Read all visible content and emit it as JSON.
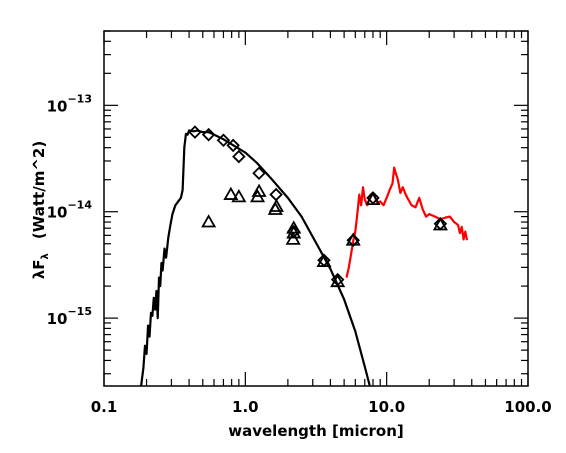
{
  "chart_data": {
    "type": "line",
    "title": "",
    "xscale": "log",
    "yscale": "log",
    "xlim": [
      0.1,
      100.0
    ],
    "ylim": [
      2.3e-16,
      5e-13
    ],
    "xlabel": "wavelength [micron]",
    "ylabel_prefix": "λF",
    "ylabel_subscript": "λ",
    "ylabel_units": "(Watt/m^2)",
    "x_ticks": [
      {
        "value": 0.1,
        "label": "0.1"
      },
      {
        "value": 1.0,
        "label": "1.0"
      },
      {
        "value": 10.0,
        "label": "10.0"
      },
      {
        "value": 100.0,
        "label": "100.0"
      }
    ],
    "y_ticks": [
      {
        "value": 1e-15,
        "base": "10",
        "exp": "−15"
      },
      {
        "value": 1e-14,
        "base": "10",
        "exp": "−14"
      },
      {
        "value": 1e-13,
        "base": "10",
        "exp": "−13"
      }
    ],
    "grid": false,
    "legend": "none",
    "series": [
      {
        "kind": "line",
        "color": "#000000",
        "points": [
          [
            0.183,
            2.3e-16
          ],
          [
            0.19,
            3.4e-16
          ],
          [
            0.195,
            5.5e-16
          ],
          [
            0.2,
            4.6e-16
          ],
          [
            0.205,
            8.5e-16
          ],
          [
            0.21,
            6.7e-16
          ],
          [
            0.215,
            1.12e-15
          ],
          [
            0.22,
            1.05e-15
          ],
          [
            0.225,
            1.55e-15
          ],
          [
            0.23,
            1.2e-15
          ],
          [
            0.235,
            1.8e-15
          ],
          [
            0.24,
            1e-15
          ],
          [
            0.245,
            2.4e-15
          ],
          [
            0.25,
            2e-15
          ],
          [
            0.255,
            3.3e-15
          ],
          [
            0.26,
            2.8e-15
          ],
          [
            0.268,
            4.5e-15
          ],
          [
            0.275,
            3.7e-15
          ],
          [
            0.285,
            5.7e-15
          ],
          [
            0.295,
            7.5e-15
          ],
          [
            0.305,
            9.5e-15
          ],
          [
            0.32,
            1.15e-14
          ],
          [
            0.335,
            1.25e-14
          ],
          [
            0.35,
            1.35e-14
          ],
          [
            0.36,
            1.6e-14
          ],
          [
            0.37,
            4e-14
          ],
          [
            0.38,
            5.4e-14
          ],
          [
            0.39,
            5.3e-14
          ],
          [
            0.4,
            5.8e-14
          ],
          [
            0.43,
            5.7e-14
          ],
          [
            0.46,
            5.8e-14
          ],
          [
            0.5,
            5.6e-14
          ],
          [
            0.55,
            5.6e-14
          ],
          [
            0.6,
            5.3e-14
          ],
          [
            0.7,
            4.8e-14
          ],
          [
            0.8,
            4.3e-14
          ],
          [
            1.0,
            3.6e-14
          ],
          [
            1.2,
            2.9e-14
          ],
          [
            1.5,
            2.1e-14
          ],
          [
            2.0,
            1.35e-14
          ],
          [
            2.5,
            9e-15
          ],
          [
            3.0,
            5.8e-15
          ],
          [
            4.0,
            2.9e-15
          ],
          [
            5.0,
            1.5e-15
          ],
          [
            6.0,
            7.5e-16
          ],
          [
            7.0,
            3.5e-16
          ],
          [
            7.6,
            2.3e-16
          ]
        ]
      },
      {
        "kind": "line",
        "color": "#ff0000",
        "points": [
          [
            5.2,
            2.4e-15
          ],
          [
            5.4,
            3e-15
          ],
          [
            5.6,
            4e-15
          ],
          [
            5.8,
            5.3e-15
          ],
          [
            6.0,
            6.5e-15
          ],
          [
            6.2,
            9.5e-15
          ],
          [
            6.4,
            1.45e-14
          ],
          [
            6.6,
            1.15e-14
          ],
          [
            6.8,
            1.7e-14
          ],
          [
            7.0,
            1.3e-14
          ],
          [
            7.3,
            1.15e-14
          ],
          [
            7.7,
            1.45e-14
          ],
          [
            8.0,
            1.5e-14
          ],
          [
            8.3,
            1.35e-14
          ],
          [
            8.6,
            1.2e-14
          ],
          [
            9.0,
            1.25e-14
          ],
          [
            9.5,
            1.15e-14
          ],
          [
            10.0,
            1.35e-14
          ],
          [
            10.5,
            1.6e-14
          ],
          [
            11.0,
            1.85e-14
          ],
          [
            11.3,
            2.6e-14
          ],
          [
            11.6,
            2.3e-14
          ],
          [
            12.0,
            2e-14
          ],
          [
            12.5,
            1.5e-14
          ],
          [
            13.0,
            1.7e-14
          ],
          [
            13.5,
            1.5e-14
          ],
          [
            14.0,
            1.35e-14
          ],
          [
            14.5,
            1.25e-14
          ],
          [
            15.0,
            1.15e-14
          ],
          [
            16.0,
            1.1e-14
          ],
          [
            17.0,
            1.35e-14
          ],
          [
            18.0,
            1.05e-14
          ],
          [
            19.0,
            9e-15
          ],
          [
            20.0,
            9.5e-15
          ],
          [
            22.0,
            9e-15
          ],
          [
            24.0,
            8.5e-15
          ],
          [
            26.0,
            8.8e-15
          ],
          [
            28.0,
            9e-15
          ],
          [
            30.0,
            8e-15
          ],
          [
            32.0,
            7.5e-15
          ],
          [
            33.0,
            6.3e-15
          ],
          [
            34.0,
            7.2e-15
          ],
          [
            35.0,
            5.5e-15
          ],
          [
            36.0,
            6.5e-15
          ],
          [
            37.0,
            5.4e-15
          ]
        ]
      },
      {
        "kind": "marker",
        "marker": "diamond",
        "color": "#000000",
        "points": [
          [
            0.44,
            5.6e-14
          ],
          [
            0.55,
            5.3e-14
          ],
          [
            0.7,
            4.7e-14
          ],
          [
            0.82,
            4.2e-14
          ],
          [
            0.9,
            3.3e-14
          ],
          [
            1.25,
            2.3e-14
          ],
          [
            1.65,
            1.45e-14
          ],
          [
            2.2,
            6.5e-15
          ],
          [
            3.6,
            3.5e-15
          ],
          [
            4.5,
            2.3e-15
          ],
          [
            5.8,
            5.4e-15
          ],
          [
            8.0,
            1.35e-14
          ],
          [
            24.0,
            7.7e-15
          ]
        ]
      },
      {
        "kind": "marker",
        "marker": "triangle",
        "color": "#000000",
        "points": [
          [
            0.55,
            8e-15
          ],
          [
            0.79,
            1.45e-14
          ],
          [
            0.9,
            1.38e-14
          ],
          [
            1.22,
            1.38e-14
          ],
          [
            1.25,
            1.55e-14
          ],
          [
            1.63,
            1.05e-14
          ],
          [
            1.66,
            1.12e-14
          ],
          [
            2.18,
            5.5e-15
          ],
          [
            2.2,
            6.3e-15
          ],
          [
            2.2,
            7e-15
          ],
          [
            3.6,
            3.4e-15
          ],
          [
            4.5,
            2.2e-15
          ],
          [
            5.8,
            5.4e-15
          ],
          [
            8.0,
            1.3e-14
          ],
          [
            24.0,
            7.5e-15
          ]
        ]
      }
    ]
  }
}
